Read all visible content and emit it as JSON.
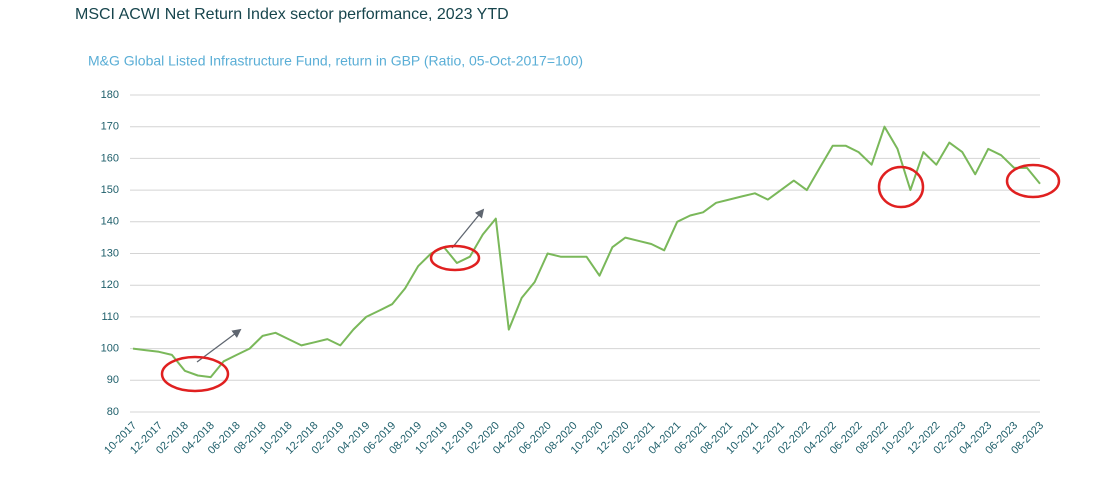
{
  "chart_data": {
    "type": "line",
    "title": "MSCI ACWI Net Return Index sector performance, 2023 YTD",
    "subtitle": "M&G Global Listed Infrastructure Fund, return in GBP (Ratio, 05-Oct-2017=100)",
    "categories": [
      "10-2017",
      null,
      "12-2017",
      null,
      "02-2018",
      null,
      "04-2018",
      null,
      "06-2018",
      null,
      "08-2018",
      null,
      "10-2018",
      null,
      "12-2018",
      null,
      "02-2019",
      null,
      "04-2019",
      null,
      "06-2019",
      null,
      "08-2019",
      null,
      "10-2019",
      null,
      "12-2019",
      null,
      "02-2020",
      null,
      "04-2020",
      null,
      "06-2020",
      null,
      "08-2020",
      null,
      "10-2020",
      null,
      "12-2020",
      null,
      "02-2021",
      null,
      "04-2021",
      null,
      "06-2021",
      null,
      "08-2021",
      null,
      "10-2021",
      null,
      "12-2021",
      null,
      "02-2022",
      null,
      "04-2022",
      null,
      "06-2022",
      null,
      "08-2022",
      null,
      "10-2022",
      null,
      "12-2022",
      null,
      "02-2023",
      null,
      "04-2023",
      null,
      "06-2023",
      null,
      "08-2023"
    ],
    "values": [
      100,
      99.5,
      99,
      98,
      93,
      91.5,
      91,
      96,
      98,
      100,
      104,
      105,
      103,
      101,
      102,
      103,
      101,
      106,
      110,
      112,
      114,
      119,
      126,
      130,
      132,
      127,
      129,
      136,
      141,
      106,
      116,
      121,
      130,
      129,
      129,
      129,
      123,
      132,
      135,
      134,
      133,
      131,
      140,
      142,
      143,
      146,
      147,
      148,
      149,
      147,
      150,
      153,
      150,
      157,
      164,
      164,
      162,
      158,
      170,
      163,
      150,
      162,
      158,
      165,
      162,
      155,
      163,
      161,
      157,
      157,
      152
    ],
    "color": "#7ab85a",
    "ylim": [
      80,
      180
    ],
    "yticks": [
      80,
      90,
      100,
      110,
      120,
      130,
      140,
      150,
      160,
      170,
      180
    ],
    "grid": true
  }
}
